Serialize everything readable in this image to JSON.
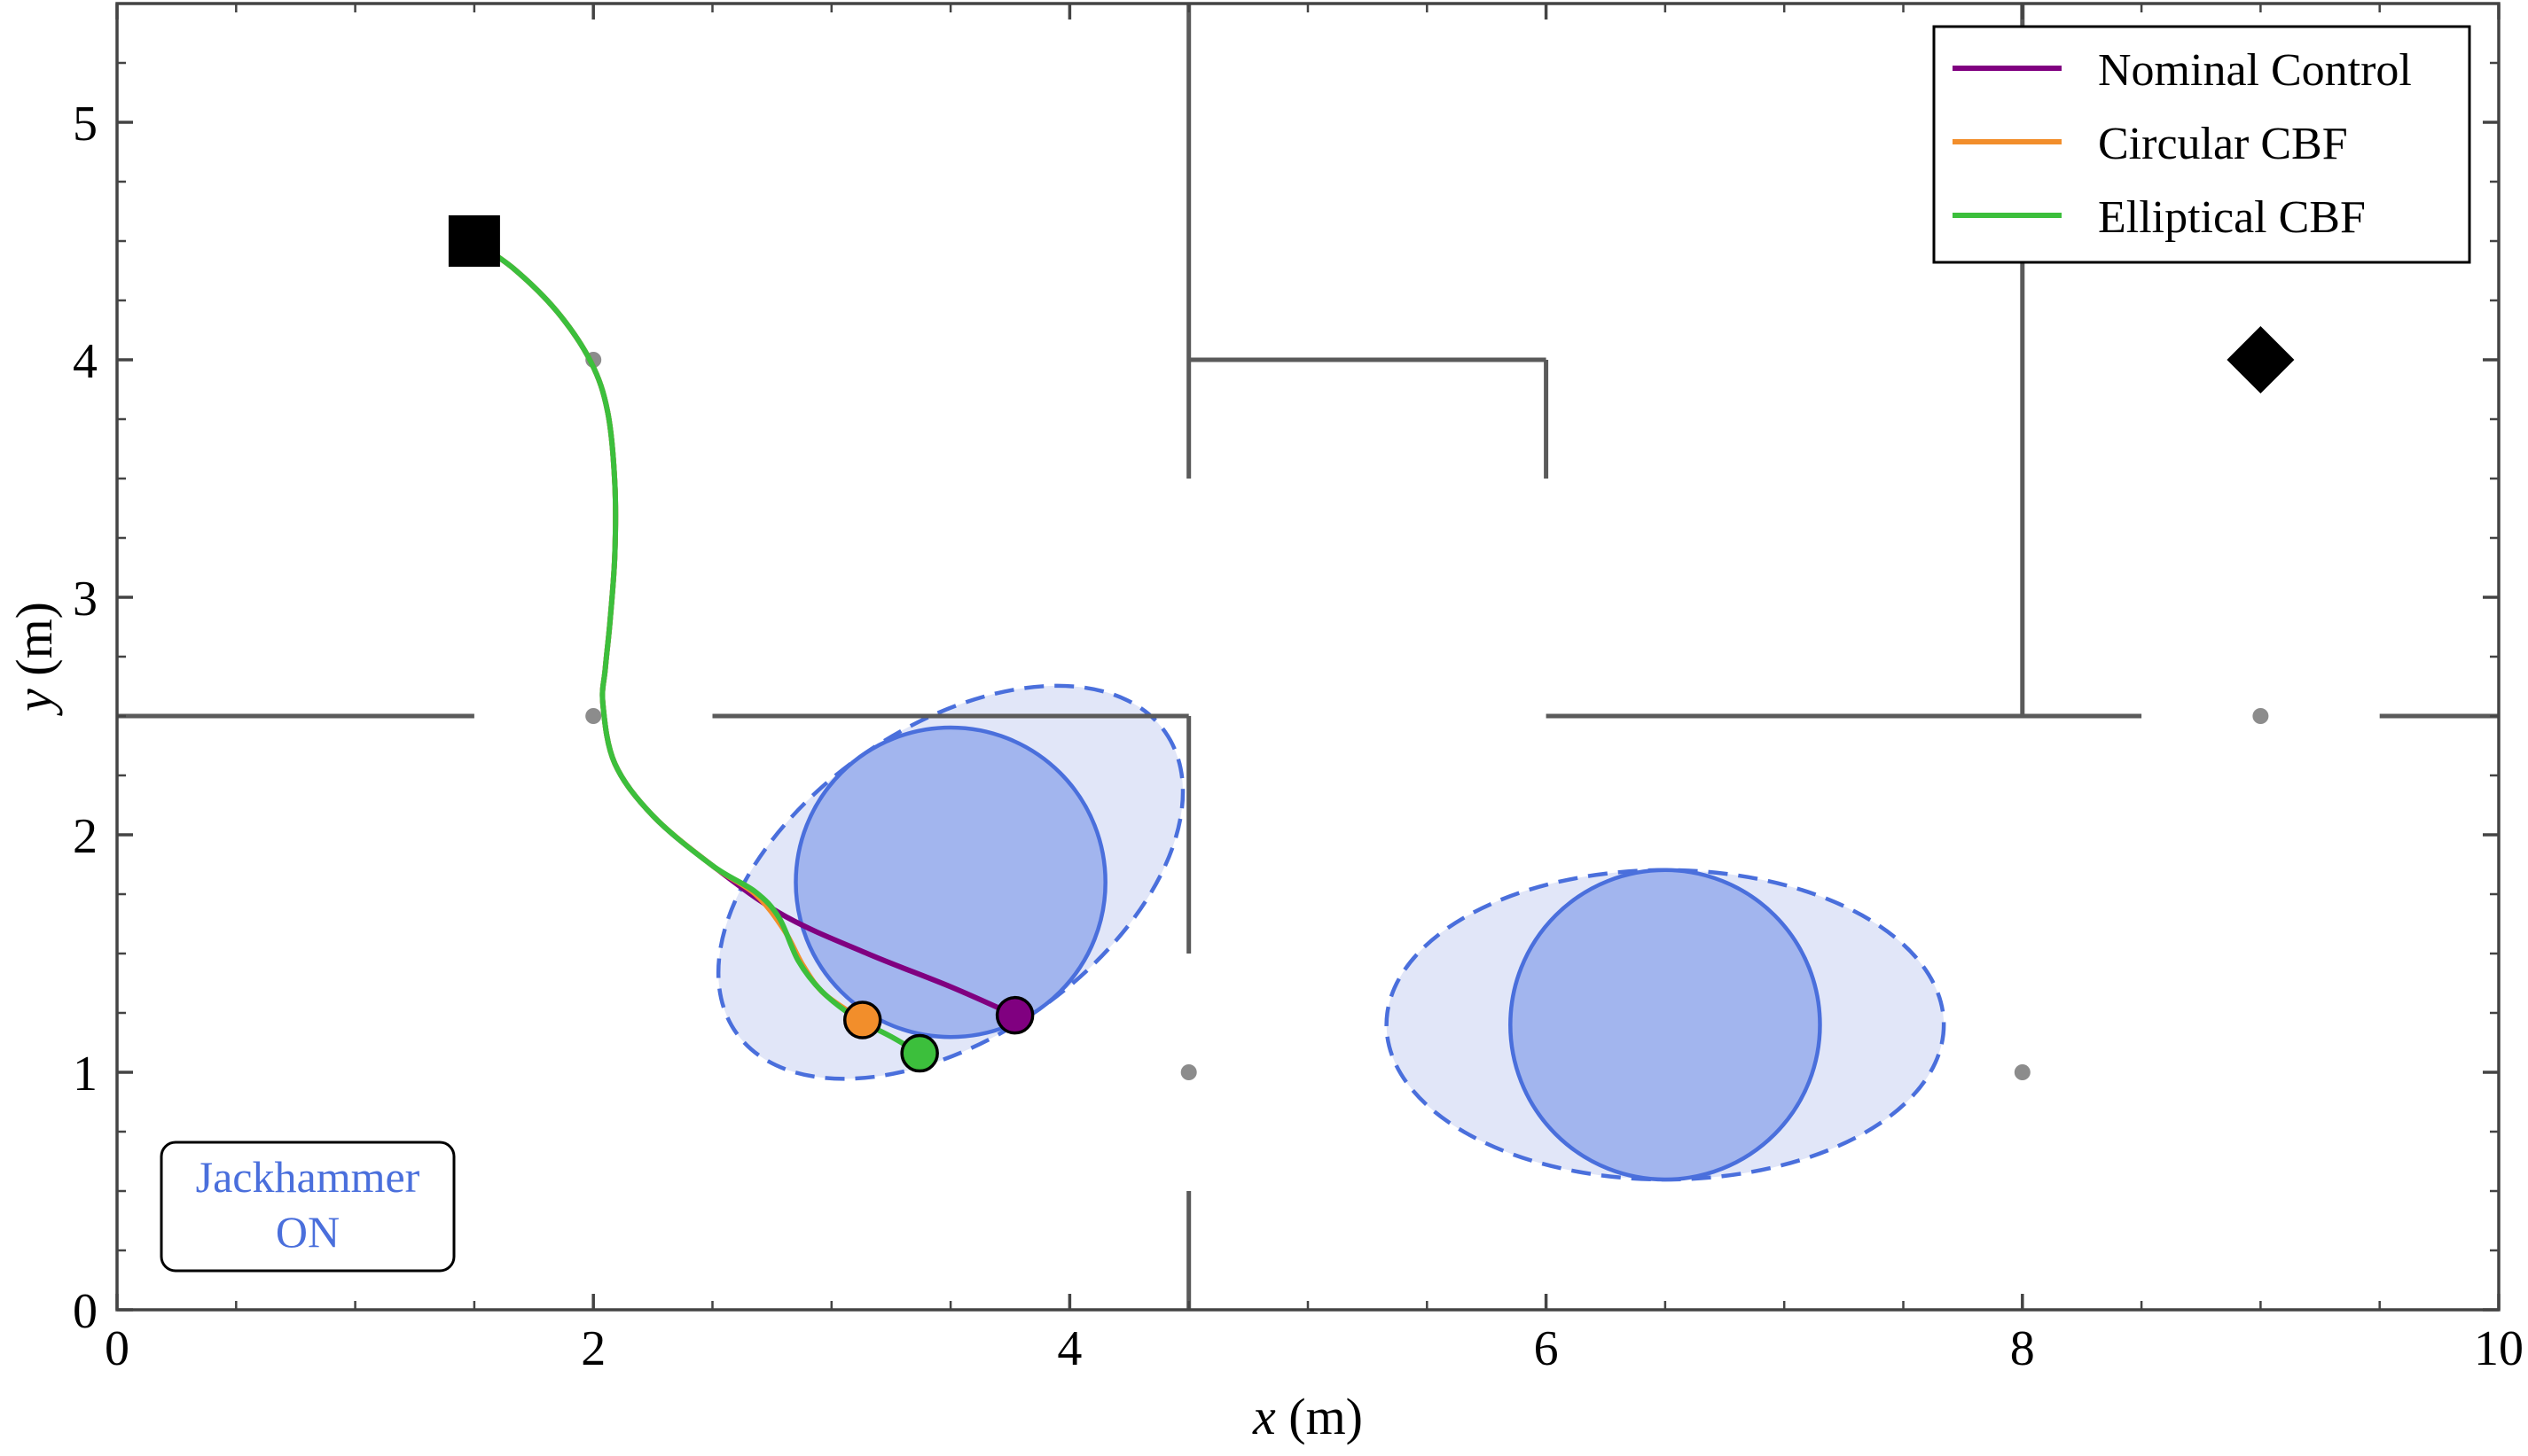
{
  "chart_data": {
    "type": "line",
    "xlabel_var": "x",
    "xlabel_unit": " (m)",
    "ylabel_var": "y",
    "ylabel_unit": " (m)",
    "xlim": [
      0,
      10
    ],
    "ylim": [
      0,
      5.5
    ],
    "x_ticks": [
      0,
      2,
      4,
      6,
      8,
      10
    ],
    "x_tick_labels": [
      "0",
      "2",
      "4",
      "6",
      "8",
      "10"
    ],
    "y_ticks": [
      0,
      1,
      2,
      3,
      4,
      5
    ],
    "y_tick_labels": [
      "0",
      "1",
      "2",
      "3",
      "4",
      "5"
    ],
    "x_minor_ticks": [
      0.5,
      1,
      1.5,
      2.5,
      3,
      3.5,
      4.5,
      5,
      5.5,
      6.5,
      7,
      7.5,
      8.5,
      9,
      9.5
    ],
    "y_minor_ticks": [
      0.25,
      0.5,
      0.75,
      1.25,
      1.5,
      1.75,
      2.25,
      2.5,
      2.75,
      3.25,
      3.5,
      3.75,
      4.25,
      4.5,
      4.75,
      5.25
    ],
    "grid": false,
    "legend_position": "top-right",
    "walls": [
      [
        [
          0,
          2.5
        ],
        [
          1.5,
          2.5
        ]
      ],
      [
        [
          2.5,
          2.5
        ],
        [
          4.5,
          2.5
        ]
      ],
      [
        [
          6,
          2.5
        ],
        [
          8.5,
          2.5
        ]
      ],
      [
        [
          9.5,
          2.5
        ],
        [
          10,
          2.5
        ]
      ],
      [
        [
          4.5,
          5.5
        ],
        [
          4.5,
          3.5
        ]
      ],
      [
        [
          4.5,
          4.0
        ],
        [
          6.0,
          4.0
        ]
      ],
      [
        [
          6.0,
          4.0
        ],
        [
          6.0,
          3.5
        ]
      ],
      [
        [
          4.5,
          2.5
        ],
        [
          4.5,
          1.5
        ]
      ],
      [
        [
          4.5,
          0.5
        ],
        [
          4.5,
          0
        ]
      ],
      [
        [
          8.0,
          5.5
        ],
        [
          8.0,
          2.5
        ]
      ]
    ],
    "waypoints": [
      [
        2,
        4
      ],
      [
        2,
        2.5
      ],
      [
        4.5,
        1
      ],
      [
        8,
        1
      ],
      [
        9,
        2.5
      ]
    ],
    "start": [
      1.5,
      4.5
    ],
    "goal": [
      9,
      4
    ],
    "obstacles": [
      {
        "center": [
          3.5,
          1.8
        ],
        "radius": 0.65,
        "ellipse_rx": 1.1,
        "ellipse_ry": 0.65,
        "ellipse_angle_deg": -35
      },
      {
        "center": [
          6.5,
          1.2
        ],
        "radius": 0.65,
        "ellipse_rx": 1.17,
        "ellipse_ry": 0.65,
        "ellipse_angle_deg": 0
      }
    ],
    "series": [
      {
        "name": "Nominal Control",
        "color": "#800080",
        "end": [
          3.77,
          1.24
        ],
        "points": [
          [
            1.5,
            4.5
          ],
          [
            1.67,
            4.38
          ],
          [
            1.85,
            4.2
          ],
          [
            1.99,
            3.99
          ],
          [
            2.06,
            3.78
          ],
          [
            2.09,
            3.48
          ],
          [
            2.09,
            3.18
          ],
          [
            2.07,
            2.9
          ],
          [
            2.05,
            2.7
          ],
          [
            2.04,
            2.55
          ],
          [
            2.09,
            2.3
          ],
          [
            2.25,
            2.08
          ],
          [
            2.5,
            1.87
          ],
          [
            2.8,
            1.66
          ],
          [
            3.15,
            1.5
          ],
          [
            3.5,
            1.36
          ],
          [
            3.77,
            1.24
          ]
        ]
      },
      {
        "name": "Circular CBF",
        "color": "#f28e2b",
        "end": [
          3.13,
          1.22
        ],
        "points": [
          [
            1.5,
            4.5
          ],
          [
            1.67,
            4.38
          ],
          [
            1.85,
            4.2
          ],
          [
            1.99,
            3.99
          ],
          [
            2.06,
            3.78
          ],
          [
            2.09,
            3.48
          ],
          [
            2.09,
            3.18
          ],
          [
            2.07,
            2.9
          ],
          [
            2.05,
            2.7
          ],
          [
            2.04,
            2.55
          ],
          [
            2.09,
            2.3
          ],
          [
            2.25,
            2.08
          ],
          [
            2.5,
            1.87
          ],
          [
            2.68,
            1.75
          ],
          [
            2.8,
            1.6
          ],
          [
            2.88,
            1.45
          ],
          [
            2.97,
            1.33
          ],
          [
            3.13,
            1.22
          ]
        ]
      },
      {
        "name": "Elliptical CBF",
        "color": "#3cbf3c",
        "end": [
          3.37,
          1.08
        ],
        "points": [
          [
            1.5,
            4.5
          ],
          [
            1.67,
            4.38
          ],
          [
            1.85,
            4.2
          ],
          [
            1.99,
            3.99
          ],
          [
            2.06,
            3.78
          ],
          [
            2.09,
            3.48
          ],
          [
            2.09,
            3.18
          ],
          [
            2.07,
            2.9
          ],
          [
            2.05,
            2.7
          ],
          [
            2.04,
            2.55
          ],
          [
            2.09,
            2.3
          ],
          [
            2.25,
            2.08
          ],
          [
            2.5,
            1.87
          ],
          [
            2.68,
            1.76
          ],
          [
            2.78,
            1.65
          ],
          [
            2.86,
            1.47
          ],
          [
            2.96,
            1.34
          ],
          [
            3.1,
            1.23
          ],
          [
            3.25,
            1.15
          ],
          [
            3.37,
            1.08
          ]
        ]
      }
    ],
    "annotation": {
      "line1": "Jackhammer",
      "line2": "ON"
    }
  }
}
